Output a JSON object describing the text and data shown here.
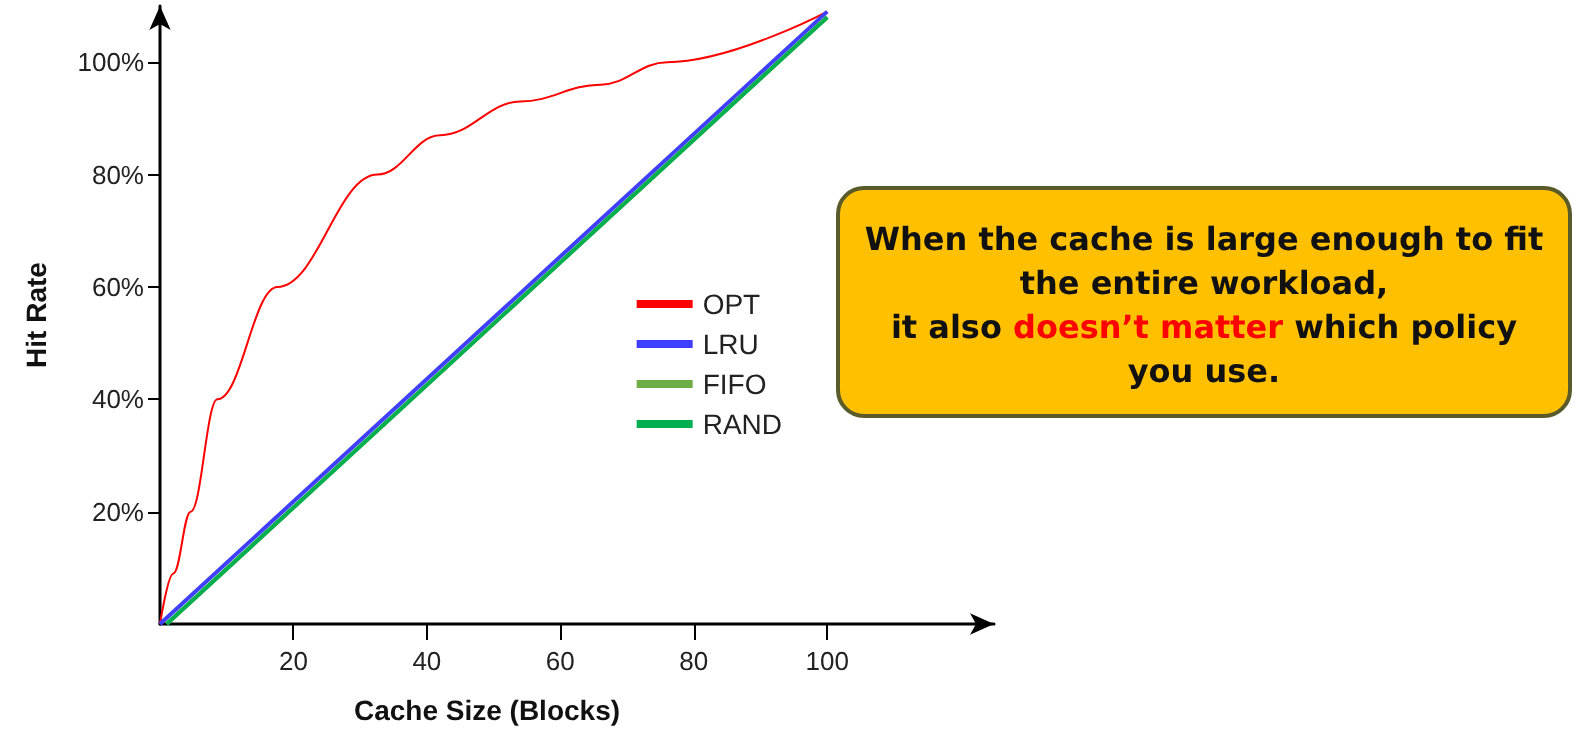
{
  "chart_data": {
    "type": "line",
    "xlabel": "Cache Size (Blocks)",
    "ylabel": "Hit Rate",
    "annotations": [
      "When the cache is large enough to fit the entire workload,",
      "it also",
      "doesn’t matter",
      "which policy you use."
    ],
    "series": [
      {
        "name": "OPT",
        "color": "#ff0000",
        "x": [
          0,
          2,
          4.6,
          8.6,
          17.6,
          32.6,
          42,
          54,
          66,
          76,
          100
        ],
        "values": [
          0,
          9,
          20,
          40,
          60,
          80,
          87,
          93,
          96,
          100,
          109
        ]
      },
      {
        "name": "LRU",
        "color": "#3f3fff",
        "x": [
          0,
          100
        ],
        "values": [
          0,
          109
        ]
      },
      {
        "name": "FIFO",
        "color": "#70ad47",
        "x": [
          1,
          100
        ],
        "values": [
          0,
          108
        ]
      },
      {
        "name": "RAND",
        "color": "#00b050",
        "x": [
          1,
          100
        ],
        "values": [
          0,
          108
        ]
      }
    ],
    "xlim": [
      0,
      125
    ],
    "xticks": [
      20,
      40,
      60,
      80,
      100
    ],
    "ylim": [
      0,
      110
    ],
    "yticks": [
      {
        "value": 20,
        "label": "20%"
      },
      {
        "value": 40,
        "label": "40%"
      },
      {
        "value": 60,
        "label": "60%"
      },
      {
        "value": 80,
        "label": "80%"
      },
      {
        "value": 100,
        "label": "100%"
      }
    ],
    "grid": false,
    "legend": "right",
    "marker": "none",
    "line_style": "solid"
  }
}
